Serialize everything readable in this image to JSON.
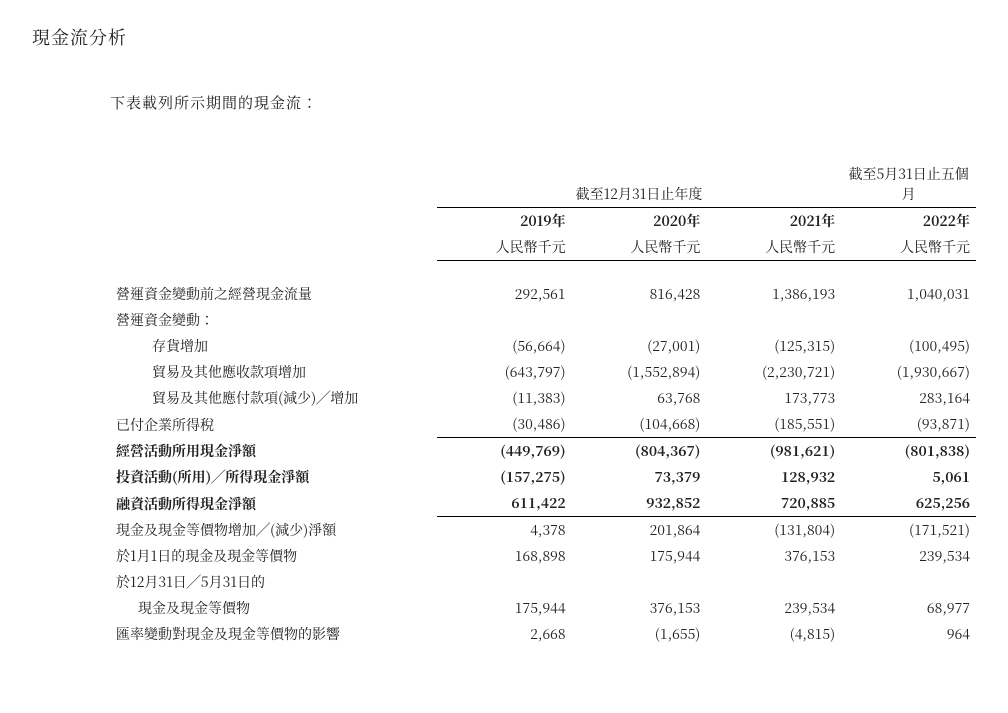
{
  "section_title": "現金流分析",
  "intro": "下表載列所示期間的現金流：",
  "header": {
    "period_group_year": "截至12月31日止年度",
    "period_group_5m": "截至5月31日止五個月",
    "year_2019": "2019年",
    "year_2020": "2020年",
    "year_2021": "2021年",
    "year_2022": "2022年",
    "unit": "人民幣千元"
  },
  "rows": {
    "r1": {
      "label": "營運資金變動前之經營現金流量",
      "c2019": "292,561",
      "c2020": "816,428",
      "c2021": "1,386,193",
      "c2022": "1,040,031"
    },
    "r2": {
      "label": "營運資金變動："
    },
    "r3": {
      "label": "存貨增加",
      "c2019": "(56,664)",
      "c2020": "(27,001)",
      "c2021": "(125,315)",
      "c2022": "(100,495)"
    },
    "r4": {
      "label": "貿易及其他應收款項增加",
      "c2019": "(643,797)",
      "c2020": "(1,552,894)",
      "c2021": "(2,230,721)",
      "c2022": "(1,930,667)"
    },
    "r5": {
      "label": "貿易及其他應付款項(減少)╱增加",
      "c2019": "(11,383)",
      "c2020": "63,768",
      "c2021": "173,773",
      "c2022": "283,164"
    },
    "r6": {
      "label": "已付企業所得稅",
      "c2019": "(30,486)",
      "c2020": "(104,668)",
      "c2021": "(185,551)",
      "c2022": "(93,871)"
    },
    "r7": {
      "label": "經營活動所用現金淨額",
      "c2019": "(449,769)",
      "c2020": "(804,367)",
      "c2021": "(981,621)",
      "c2022": "(801,838)"
    },
    "r8": {
      "label": "投資活動(所用)╱所得現金淨額",
      "c2019": "(157,275)",
      "c2020": "73,379",
      "c2021": "128,932",
      "c2022": "5,061"
    },
    "r9": {
      "label": "融資活動所得現金淨額",
      "c2019": "611,422",
      "c2020": "932,852",
      "c2021": "720,885",
      "c2022": "625,256"
    },
    "r10": {
      "label": "現金及現金等價物增加╱(減少)淨額",
      "c2019": "4,378",
      "c2020": "201,864",
      "c2021": "(131,804)",
      "c2022": "(171,521)"
    },
    "r11": {
      "label": "於1月1日的現金及現金等價物",
      "c2019": "168,898",
      "c2020": "175,944",
      "c2021": "376,153",
      "c2022": "239,534"
    },
    "r12a": {
      "label": "於12月31日╱5月31日的"
    },
    "r12b": {
      "label": "現金及現金等價物",
      "c2019": "175,944",
      "c2020": "376,153",
      "c2021": "239,534",
      "c2022": "68,977"
    },
    "r13": {
      "label": "匯率變動對現金及現金等價物的影響",
      "c2019": "2,668",
      "c2020": "(1,655)",
      "c2021": "(4,815)",
      "c2022": "964"
    }
  }
}
